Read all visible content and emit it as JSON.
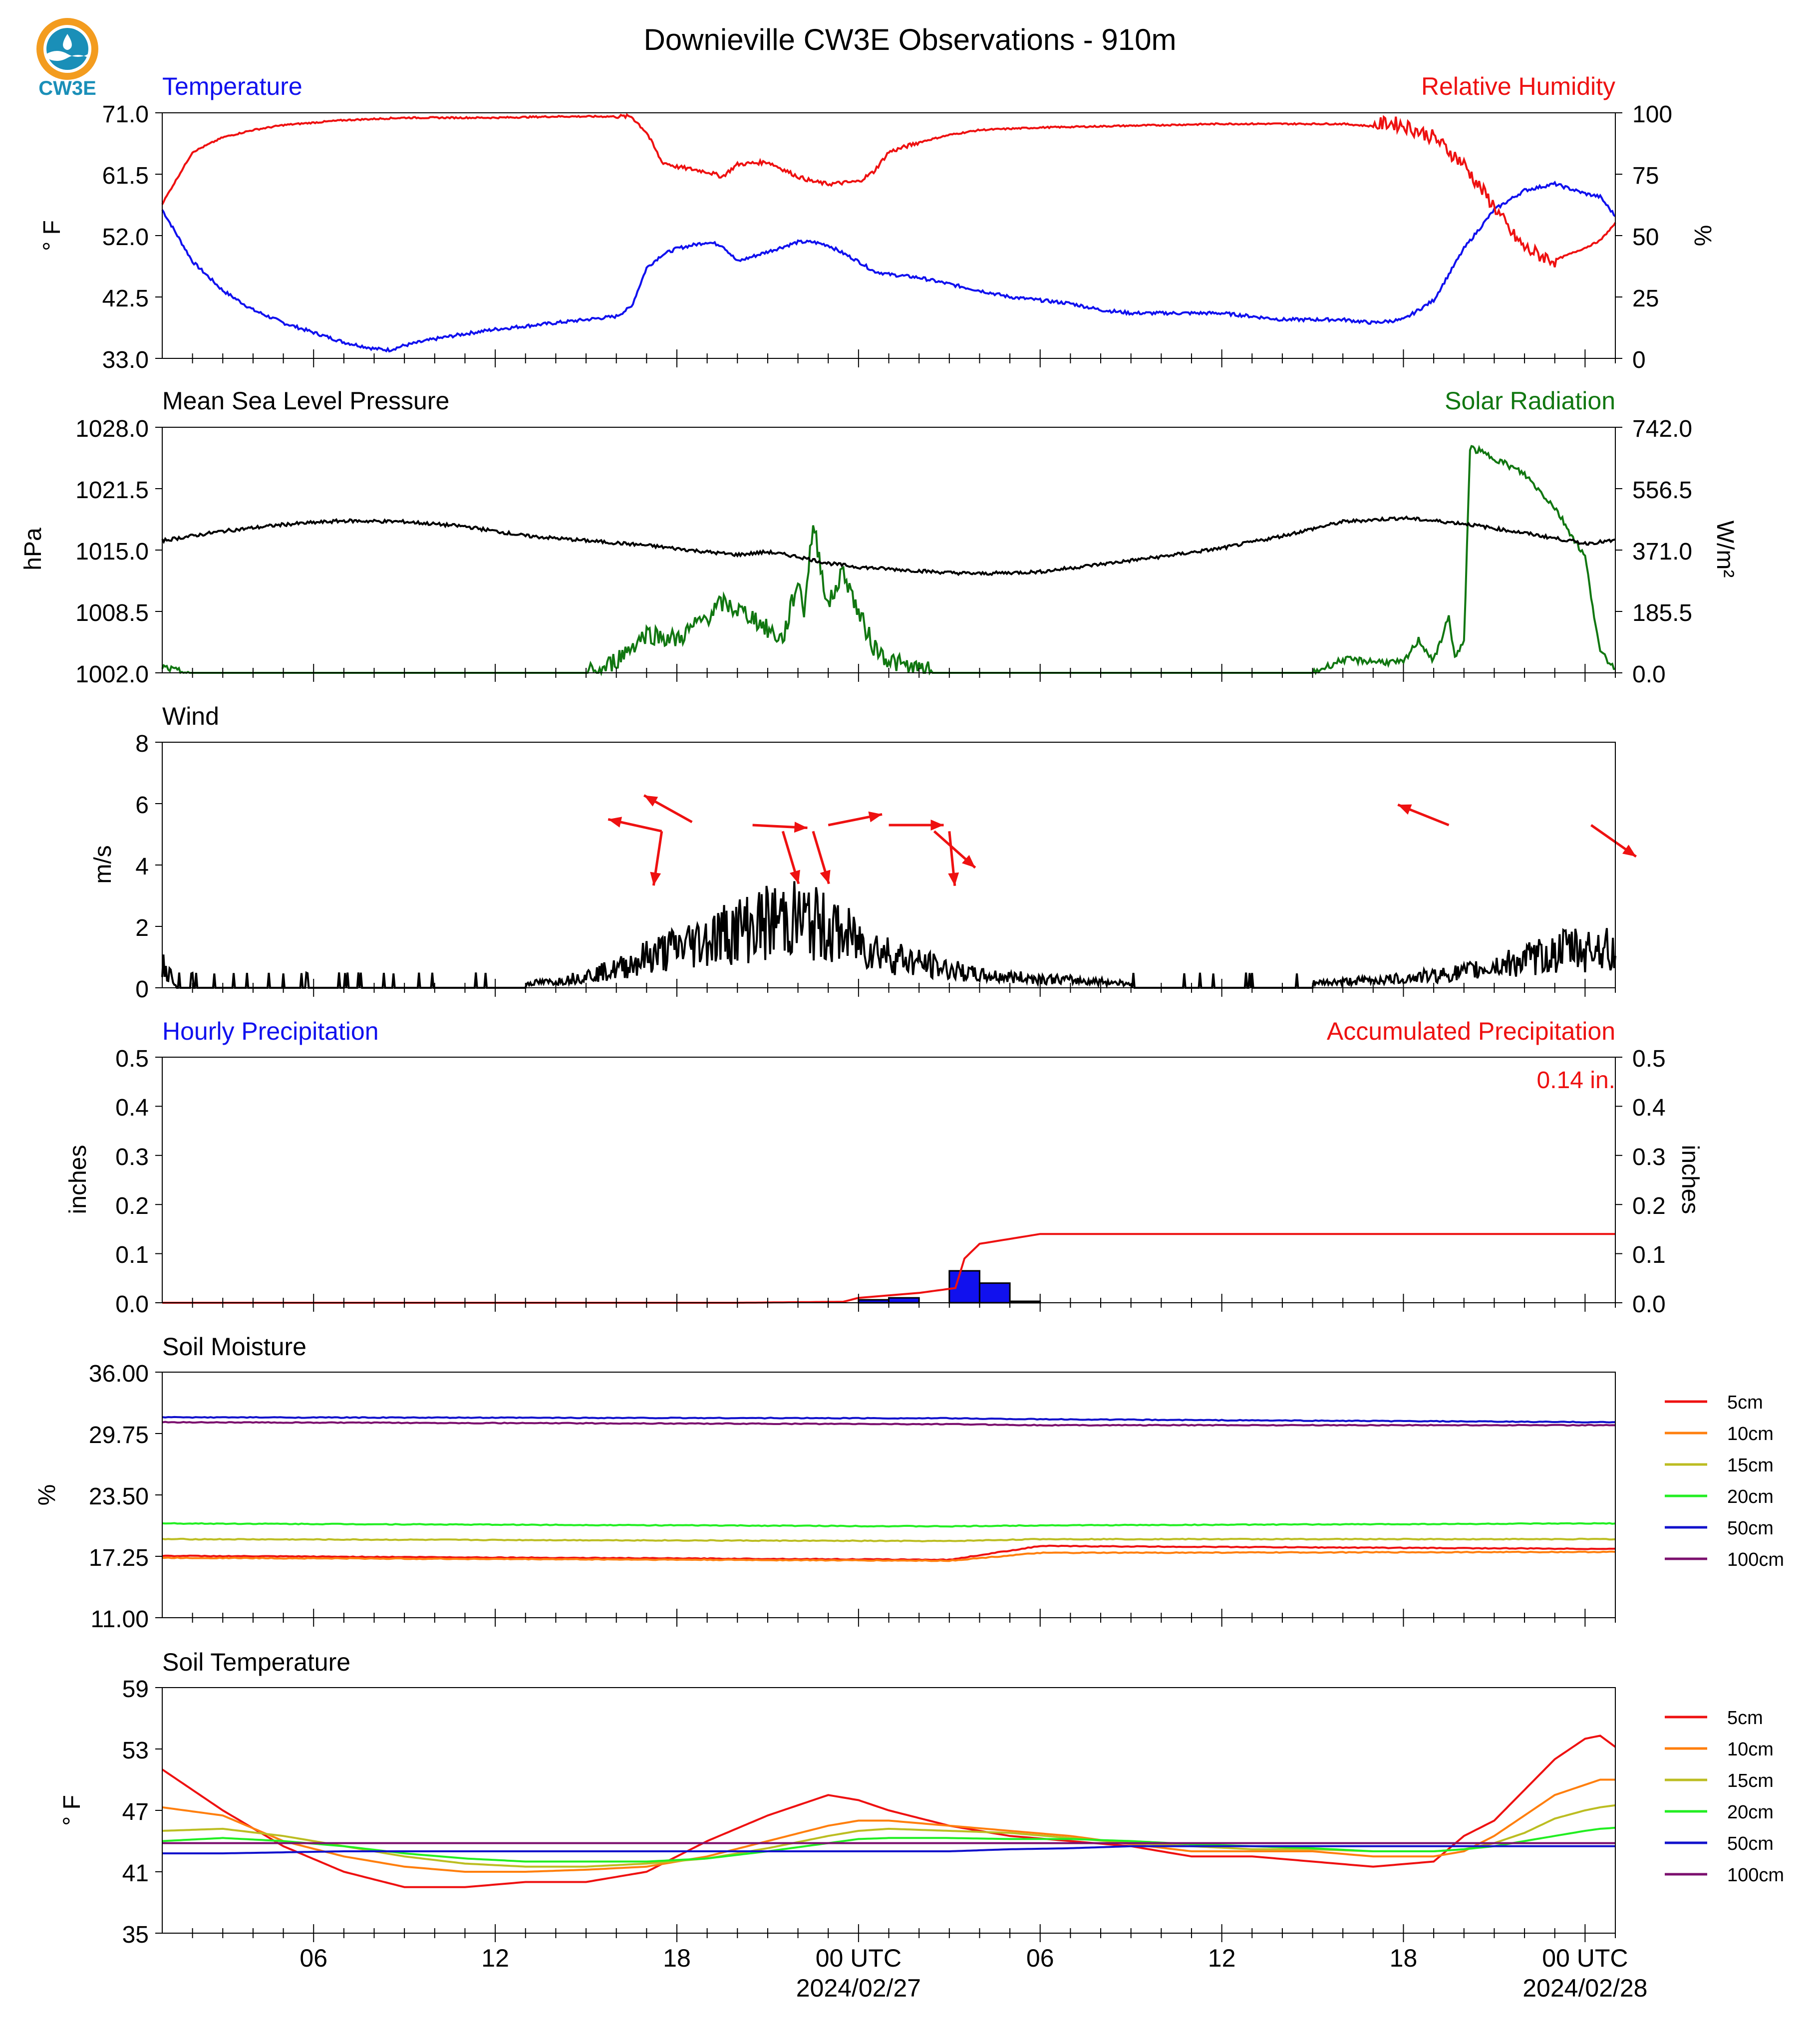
{
  "header": {
    "title": "Downieville CW3E Observations - 910m",
    "logo_text": "CW3E"
  },
  "colors": {
    "red": "#ee1111",
    "blue": "#1111ee",
    "green": "#117711",
    "black": "#000000",
    "soil": [
      "#ee1111",
      "#ff7f0e",
      "#bcbd22",
      "#22ee22",
      "#1111cc",
      "#7b0f6e"
    ]
  },
  "xaxis": {
    "ticks": [
      {
        "h": 6,
        "label": "06"
      },
      {
        "h": 12,
        "label": "12"
      },
      {
        "h": 18,
        "label": "18"
      },
      {
        "h": 24,
        "label": "00 UTC",
        "sub": "2024/02/27"
      },
      {
        "h": 30,
        "label": "06"
      },
      {
        "h": 36,
        "label": "12"
      },
      {
        "h": 42,
        "label": "18"
      },
      {
        "h": 48,
        "label": "00 UTC",
        "sub": "2024/02/28"
      }
    ],
    "range_hours": [
      1,
      49
    ]
  },
  "panels": {
    "temp": {
      "left_title": "Temperature",
      "right_title": "Relative Humidity",
      "left_unit": "° F",
      "right_unit": "%",
      "left_ticks": [
        "71.0",
        "61.5",
        "52.0",
        "42.5",
        "33.0"
      ],
      "right_ticks": [
        "100",
        "75",
        "50",
        "25",
        "0"
      ]
    },
    "pressure": {
      "left_title": "Mean Sea Level Pressure",
      "right_title": "Solar Radiation",
      "left_unit": "hPa",
      "right_unit": "W/m²",
      "left_ticks": [
        "1028.0",
        "1021.5",
        "1015.0",
        "1008.5",
        "1002.0"
      ],
      "right_ticks": [
        "742.0",
        "556.5",
        "371.0",
        "185.5",
        "0.0"
      ]
    },
    "wind": {
      "left_title": "Wind",
      "left_unit": "m/s",
      "left_ticks": [
        "8",
        "6",
        "4",
        "2",
        "0"
      ]
    },
    "precip": {
      "left_title": "Hourly Precipitation",
      "right_title": "Accumulated Precipitation",
      "left_unit": "inches",
      "right_unit": "inches",
      "left_ticks": [
        "0.5",
        "0.4",
        "0.3",
        "0.2",
        "0.1",
        "0.0"
      ],
      "right_ticks": [
        "0.5",
        "0.4",
        "0.3",
        "0.2",
        "0.1",
        "0.0"
      ],
      "total_label": "0.14 in."
    },
    "soilm": {
      "left_title": "Soil Moisture",
      "left_unit": "%",
      "left_ticks": [
        "36.00",
        "29.75",
        "23.50",
        "17.25",
        "11.00"
      ],
      "legend": [
        "5cm",
        "10cm",
        "15cm",
        "20cm",
        "50cm",
        "100cm"
      ]
    },
    "soilt": {
      "left_title": "Soil Temperature",
      "left_unit": "° F",
      "left_ticks": [
        "59",
        "53",
        "47",
        "41",
        "35"
      ],
      "legend": [
        "5cm",
        "10cm",
        "15cm",
        "20cm",
        "50cm",
        "100cm"
      ]
    }
  },
  "chart_data": {
    "type": "line",
    "x_units": "hours since 2024-02-26 00 UTC",
    "temperature_f": {
      "ylim": [
        33,
        71
      ],
      "x": [
        1,
        2,
        3,
        4,
        5,
        6,
        7,
        8,
        8.5,
        9,
        10,
        11,
        12,
        13,
        14,
        15,
        16,
        16.5,
        17,
        17.5,
        18,
        19,
        19.5,
        20,
        21,
        22,
        22.5,
        23,
        24,
        24.5,
        25,
        26,
        27,
        28,
        29,
        30,
        31,
        32,
        33,
        34,
        35,
        36,
        37,
        38,
        39,
        40,
        41,
        42,
        43,
        44,
        45,
        46,
        47,
        48,
        48.5,
        49
      ],
      "values": [
        56,
        48,
        43.5,
        40.5,
        38.5,
        37,
        35.5,
        34.5,
        34.3,
        35,
        36,
        36.8,
        37.5,
        38,
        38.5,
        39,
        39.5,
        41,
        47,
        49,
        50,
        51,
        50.5,
        48,
        49.5,
        51,
        51,
        50.5,
        48,
        46.5,
        46,
        45.5,
        44.5,
        43.5,
        42.5,
        42,
        41.5,
        40.5,
        40,
        40,
        40,
        40,
        39.5,
        39,
        39,
        39,
        38.5,
        39,
        42,
        50,
        56,
        59,
        60,
        58.5,
        58,
        55
      ]
    },
    "relative_humidity_pct": {
      "ylim": [
        0,
        100
      ],
      "x": [
        1,
        2,
        3,
        4,
        5,
        6,
        7,
        8,
        9,
        10,
        12,
        14,
        16,
        16.5,
        17,
        17.5,
        18,
        19,
        19.5,
        20,
        21,
        22,
        22.5,
        23,
        24,
        24.5,
        25,
        26,
        27,
        28,
        30,
        32,
        34,
        36,
        38,
        40,
        41,
        41.5,
        42,
        43,
        44,
        44.5,
        45,
        45.5,
        46,
        46.5,
        47,
        48,
        48.5,
        49
      ],
      "values": [
        63,
        84,
        90,
        93,
        95,
        96,
        97,
        97.5,
        98,
        98,
        98,
        98.5,
        98.5,
        98.5,
        92,
        80,
        78,
        76,
        74,
        79,
        80,
        74,
        72,
        71,
        72,
        76,
        84,
        88,
        91,
        93,
        94,
        94.5,
        95,
        95.5,
        95.5,
        95.5,
        94.5,
        96,
        95,
        90,
        79,
        70,
        62,
        52,
        45,
        42,
        40,
        45,
        48,
        55
      ]
    },
    "mslp_hpa": {
      "ylim": [
        1002,
        1028
      ],
      "x": [
        1,
        3,
        5,
        7,
        9,
        11,
        13,
        15,
        17,
        19,
        20,
        21,
        22,
        23,
        24,
        25,
        26,
        27,
        28,
        30,
        32,
        34,
        36,
        38,
        40,
        42,
        44,
        46,
        48,
        49
      ],
      "values": [
        1016,
        1017,
        1017.7,
        1018.1,
        1018,
        1017.5,
        1016.5,
        1016,
        1015.5,
        1014.8,
        1014.5,
        1014.8,
        1014.3,
        1013.6,
        1013.2,
        1013,
        1012.8,
        1012.6,
        1012.5,
        1012.7,
        1013.5,
        1014.3,
        1015.2,
        1016.5,
        1018,
        1018.4,
        1017.8,
        1016.8,
        1015.7,
        1016
      ]
    },
    "solar_radiation_wm2": {
      "ylim": [
        0,
        742
      ],
      "x": [
        1,
        1.5,
        2,
        15,
        15.5,
        16,
        17,
        18,
        19,
        19.5,
        20,
        20.5,
        21,
        21.5,
        22,
        22.2,
        22.5,
        23,
        23.5,
        24,
        24.5,
        25,
        25.5,
        26,
        26.5,
        39,
        40,
        41,
        42,
        42.5,
        43,
        43.5,
        43.7,
        44,
        44.2,
        44.5,
        44.7,
        45,
        46,
        47,
        48,
        48.5,
        49
      ],
      "values": [
        18,
        5,
        0,
        0,
        5,
        40,
        120,
        100,
        170,
        210,
        190,
        170,
        130,
        100,
        280,
        190,
        450,
        200,
        310,
        180,
        80,
        40,
        20,
        10,
        0,
        0,
        40,
        35,
        30,
        100,
        35,
        170,
        45,
        90,
        680,
        670,
        660,
        650,
        600,
        500,
        350,
        60,
        15
      ]
    },
    "wind_speed_ms": {
      "ylim": [
        0,
        8
      ],
      "x": [
        1,
        1.2,
        1.5,
        2,
        6,
        10,
        12,
        14,
        15,
        16,
        17,
        18,
        19,
        20,
        21,
        21.5,
        22,
        22.5,
        23,
        24,
        25,
        26,
        27,
        28,
        30,
        32,
        34,
        36,
        38,
        40,
        42,
        44,
        45,
        46,
        47,
        47.5,
        48,
        48.5,
        49
      ],
      "values": [
        0.8,
        0.5,
        0.1,
        0,
        0,
        0.1,
        0.1,
        0.2,
        0.4,
        0.6,
        1,
        1.3,
        1.6,
        1.9,
        2.1,
        2.3,
        2.2,
        2.1,
        1.9,
        1.5,
        1.1,
        0.8,
        0.6,
        0.4,
        0.3,
        0.2,
        0.1,
        0.1,
        0.1,
        0.2,
        0.3,
        0.5,
        0.7,
        0.9,
        1.1,
        1.3,
        1.2,
        1.4,
        1.0
      ]
    },
    "wind_arrows": [
      {
        "x": 17.5,
        "speed": 5.1,
        "dx": -0.9,
        "dy": 0.2
      },
      {
        "x": 17.5,
        "speed": 5.1,
        "dx": -0.15,
        "dy": -1
      },
      {
        "x": 18.5,
        "speed": 5.4,
        "dx": -0.9,
        "dy": 0.5
      },
      {
        "x": 20.5,
        "speed": 5.3,
        "dx": 1,
        "dy": -0.05
      },
      {
        "x": 21.5,
        "speed": 5.1,
        "dx": 0.3,
        "dy": -1
      },
      {
        "x": 22.5,
        "speed": 5.1,
        "dx": 0.3,
        "dy": -1
      },
      {
        "x": 23,
        "speed": 5.3,
        "dx": 1,
        "dy": 0.2
      },
      {
        "x": 25,
        "speed": 5.3,
        "dx": 1,
        "dy": 0
      },
      {
        "x": 26.5,
        "speed": 5.1,
        "dx": 0.9,
        "dy": -0.8
      },
      {
        "x": 27,
        "speed": 5.1,
        "dx": 0.1,
        "dy": -1
      },
      {
        "x": 43.5,
        "speed": 5.3,
        "dx": -1,
        "dy": 0.4
      },
      {
        "x": 48.2,
        "speed": 5.3,
        "dx": 1,
        "dy": -0.7
      }
    ],
    "hourly_precip_in": {
      "ylim": [
        0,
        0.5
      ],
      "bins_start_hour": [
        24,
        25,
        27,
        28,
        29
      ],
      "values": [
        0.006,
        0.01,
        0.065,
        0.04,
        0.003
      ]
    },
    "accumulated_precip_in": {
      "ylim": [
        0,
        0.5
      ],
      "x": [
        1,
        20,
        23.5,
        24,
        26,
        27.2,
        27.5,
        28,
        29,
        30,
        49
      ],
      "values": [
        0,
        0,
        0.002,
        0.01,
        0.02,
        0.03,
        0.09,
        0.12,
        0.13,
        0.14,
        0.14
      ]
    },
    "soil_moisture_pct": {
      "ylim": [
        11,
        36
      ],
      "x": [
        1,
        27,
        30,
        49
      ],
      "series": [
        {
          "name": "5cm",
          "values": [
            17.3,
            16.9,
            18.3,
            18.0
          ]
        },
        {
          "name": "10cm",
          "values": [
            17.1,
            16.8,
            17.6,
            17.7
          ]
        },
        {
          "name": "15cm",
          "values": [
            19.0,
            18.8,
            19.0,
            19.0
          ]
        },
        {
          "name": "20cm",
          "values": [
            20.6,
            20.3,
            20.4,
            20.6
          ]
        },
        {
          "name": "50cm",
          "values": [
            31.4,
            31.3,
            31.2,
            30.9
          ]
        },
        {
          "name": "100cm",
          "values": [
            30.9,
            30.7,
            30.6,
            30.6
          ]
        }
      ]
    },
    "soil_temperature_f": {
      "ylim": [
        35,
        59
      ],
      "x": [
        1,
        3,
        5,
        7,
        9,
        11,
        13,
        15,
        17,
        19,
        21,
        23,
        24,
        25,
        27,
        29,
        31,
        33,
        35,
        37,
        39,
        41,
        43,
        44,
        45,
        46,
        47,
        48,
        48.5,
        49
      ],
      "series": [
        {
          "name": "5cm",
          "values": [
            51,
            47,
            43.5,
            41,
            39.5,
            39.5,
            40,
            40,
            41,
            44,
            46.5,
            48.5,
            48,
            47,
            45.5,
            44.5,
            44,
            43.5,
            42.5,
            42.5,
            42,
            41.5,
            42,
            44.5,
            46,
            49,
            52,
            54,
            54.3,
            53.2
          ]
        },
        {
          "name": "10cm",
          "values": [
            47.3,
            46.5,
            44,
            42.5,
            41.5,
            41,
            41,
            41.2,
            41.5,
            42.5,
            44,
            45.5,
            46,
            46,
            45.5,
            45,
            44.5,
            43.7,
            43,
            43,
            43,
            42.5,
            42.5,
            43,
            44.5,
            46.5,
            48.5,
            49.5,
            50,
            50
          ]
        },
        {
          "name": "15cm",
          "values": [
            45,
            45.2,
            44.5,
            43.5,
            42.5,
            41.8,
            41.5,
            41.5,
            41.8,
            42.3,
            43.3,
            44.5,
            45,
            45.2,
            45,
            44.8,
            44.3,
            43.8,
            43.5,
            43.2,
            43.2,
            43,
            43,
            43.2,
            43.8,
            44.8,
            46.2,
            47,
            47.3,
            47.5
          ]
        },
        {
          "name": "20cm",
          "values": [
            44,
            44.3,
            44,
            43.5,
            42.8,
            42.3,
            42,
            42,
            42,
            42.3,
            43,
            43.8,
            44.2,
            44.3,
            44.3,
            44.2,
            44.2,
            44,
            43.7,
            43.5,
            43.3,
            43,
            43,
            43.2,
            43.5,
            44,
            44.5,
            45,
            45.2,
            45.3
          ]
        },
        {
          "name": "50cm",
          "values": [
            42.8,
            42.8,
            42.9,
            43,
            43,
            43,
            43,
            43,
            43,
            43,
            43,
            43,
            43,
            43,
            43,
            43.2,
            43.3,
            43.5,
            43.5,
            43.5,
            43.5,
            43.5,
            43.5,
            43.5,
            43.5,
            43.5,
            43.5,
            43.5,
            43.5,
            43.5
          ]
        },
        {
          "name": "100cm",
          "values": [
            43.8,
            43.8,
            43.8,
            43.8,
            43.8,
            43.8,
            43.8,
            43.8,
            43.8,
            43.8,
            43.8,
            43.8,
            43.8,
            43.8,
            43.8,
            43.8,
            43.8,
            43.8,
            43.8,
            43.8,
            43.8,
            43.8,
            43.8,
            43.8,
            43.8,
            43.8,
            43.8,
            43.8,
            43.8,
            43.8
          ]
        }
      ]
    }
  }
}
